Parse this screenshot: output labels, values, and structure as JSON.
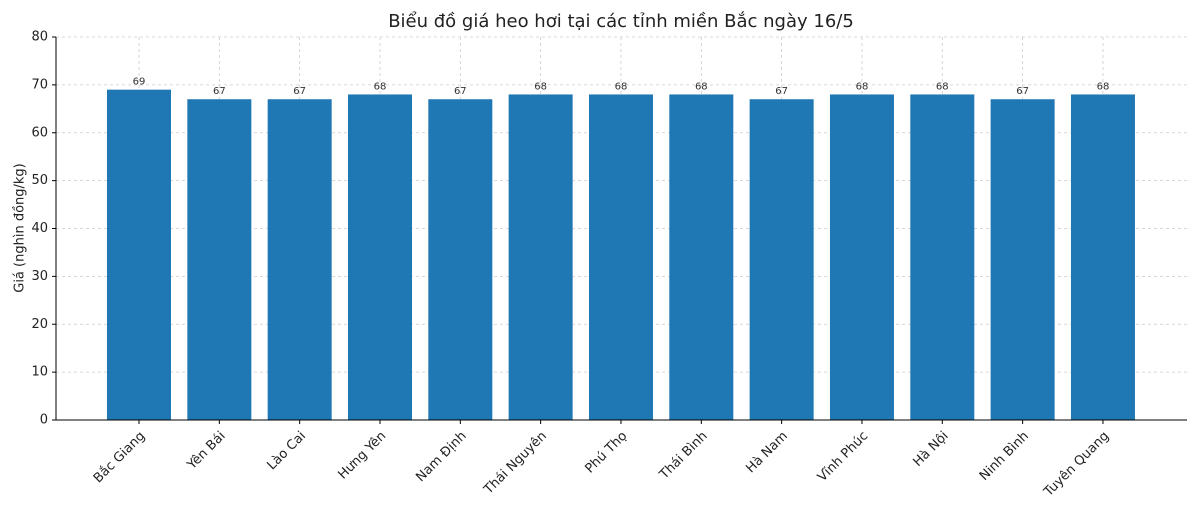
{
  "chart_data": {
    "type": "bar",
    "title": "Biểu đồ giá heo hơi tại các tỉnh miền Bắc ngày 16/5",
    "y_label": "Giá (nghìn đồng/kg)",
    "categories": [
      "Bắc Giang",
      "Yên Bái",
      "Lào Cai",
      "Hưng Yên",
      "Nam Định",
      "Thái Nguyên",
      "Phú Thọ",
      "Thái Bình",
      "Hà Nam",
      "Vĩnh Phúc",
      "Hà Nội",
      "Ninh Bình",
      "Tuyên Quang"
    ],
    "values": [
      69,
      67,
      67,
      68,
      67,
      68,
      68,
      68,
      67,
      68,
      68,
      67,
      68
    ],
    "color": "#1f77b4",
    "ylim": [
      0,
      80
    ],
    "yticks": [
      0,
      10,
      20,
      30,
      40,
      50,
      60,
      70,
      80
    ],
    "grid": true
  }
}
